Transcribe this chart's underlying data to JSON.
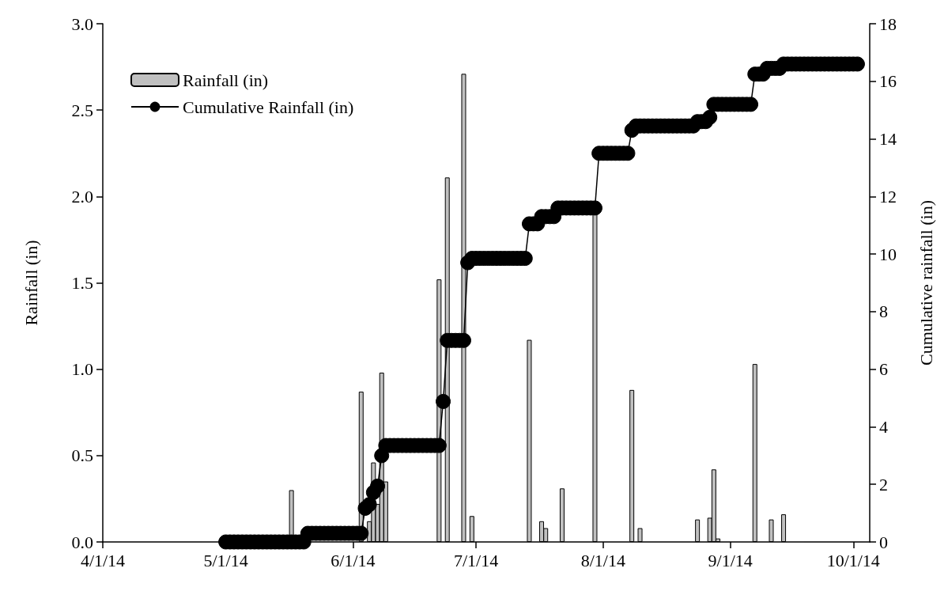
{
  "chart_data": {
    "type": "bar",
    "xlim": [
      "2014-04-01",
      "2014-10-05"
    ],
    "xticks": [
      {
        "value": "2014-04-01",
        "label": "4/1/14"
      },
      {
        "value": "2014-05-01",
        "label": "5/1/14"
      },
      {
        "value": "2014-06-01",
        "label": "6/1/14"
      },
      {
        "value": "2014-07-01",
        "label": "7/1/14"
      },
      {
        "value": "2014-08-01",
        "label": "8/1/14"
      },
      {
        "value": "2014-09-01",
        "label": "9/1/14"
      },
      {
        "value": "2014-10-01",
        "label": "10/1/14"
      }
    ],
    "ylabel": "Rainfall (in)",
    "y2label": "Cumulative rainfall (in)",
    "ylim": [
      0,
      3
    ],
    "yticks": [
      {
        "value": 0,
        "label": "0.0"
      },
      {
        "value": 0.5,
        "label": "0.5"
      },
      {
        "value": 1,
        "label": "1.0"
      },
      {
        "value": 1.5,
        "label": "1.5"
      },
      {
        "value": 2,
        "label": "2.0"
      },
      {
        "value": 2.5,
        "label": "2.5"
      },
      {
        "value": 3,
        "label": "3.0"
      }
    ],
    "y2lim": [
      0,
      18
    ],
    "y2ticks": [
      0,
      2,
      4,
      6,
      8,
      10,
      12,
      14,
      16,
      18
    ],
    "grid": false,
    "legend": "top left",
    "series": [
      {
        "name": "Rainfall (in)",
        "color": "#c0c0c0",
        "x": [
          "2014-05-17",
          "2014-06-03",
          "2014-06-05",
          "2014-06-06",
          "2014-06-07",
          "2014-06-08",
          "2014-06-09",
          "2014-06-22",
          "2014-06-24",
          "2014-06-28",
          "2014-06-30",
          "2014-07-14",
          "2014-07-17",
          "2014-07-18",
          "2014-07-22",
          "2014-07-30",
          "2014-08-08",
          "2014-08-10",
          "2014-08-24",
          "2014-08-27",
          "2014-08-28",
          "2014-08-29",
          "2014-09-07",
          "2014-09-11",
          "2014-09-14"
        ],
        "values": [
          0.3,
          0.87,
          0.12,
          0.46,
          0.22,
          0.98,
          0.35,
          1.52,
          2.11,
          2.71,
          0.15,
          1.17,
          0.12,
          0.08,
          0.31,
          1.9,
          0.88,
          0.08,
          0.13,
          0.14,
          0.42,
          0.02,
          1.03,
          0.13,
          0.16
        ]
      },
      {
        "name": "Cumulative Rainfall (in)",
        "type": "line",
        "axis": "y2",
        "color": "#000000",
        "marker": "circle",
        "line_style": "solid",
        "x": [
          "2014-05-01",
          "2014-05-02",
          "2014-05-03",
          "2014-05-04",
          "2014-05-05",
          "2014-05-06",
          "2014-05-07",
          "2014-05-08",
          "2014-05-09",
          "2014-05-10",
          "2014-05-11",
          "2014-05-12",
          "2014-05-13",
          "2014-05-14",
          "2014-05-15",
          "2014-05-16",
          "2014-05-17",
          "2014-05-18",
          "2014-05-19",
          "2014-05-20",
          "2014-05-21",
          "2014-05-22",
          "2014-05-23",
          "2014-05-24",
          "2014-05-25",
          "2014-05-26",
          "2014-05-27",
          "2014-05-28",
          "2014-05-29",
          "2014-05-30",
          "2014-05-31",
          "2014-06-01",
          "2014-06-02",
          "2014-06-03",
          "2014-06-04",
          "2014-06-05",
          "2014-06-06",
          "2014-06-07",
          "2014-06-08",
          "2014-06-09",
          "2014-06-10",
          "2014-06-11",
          "2014-06-12",
          "2014-06-13",
          "2014-06-14",
          "2014-06-15",
          "2014-06-16",
          "2014-06-17",
          "2014-06-18",
          "2014-06-19",
          "2014-06-20",
          "2014-06-21",
          "2014-06-22",
          "2014-06-23",
          "2014-06-24",
          "2014-06-25",
          "2014-06-26",
          "2014-06-27",
          "2014-06-28",
          "2014-06-29",
          "2014-06-30",
          "2014-07-01",
          "2014-07-02",
          "2014-07-03",
          "2014-07-04",
          "2014-07-05",
          "2014-07-06",
          "2014-07-07",
          "2014-07-08",
          "2014-07-09",
          "2014-07-10",
          "2014-07-11",
          "2014-07-12",
          "2014-07-13",
          "2014-07-14",
          "2014-07-15",
          "2014-07-16",
          "2014-07-17",
          "2014-07-18",
          "2014-07-19",
          "2014-07-20",
          "2014-07-21",
          "2014-07-22",
          "2014-07-23",
          "2014-07-24",
          "2014-07-25",
          "2014-07-26",
          "2014-07-27",
          "2014-07-28",
          "2014-07-29",
          "2014-07-30",
          "2014-07-31",
          "2014-08-01",
          "2014-08-02",
          "2014-08-03",
          "2014-08-04",
          "2014-08-05",
          "2014-08-06",
          "2014-08-07",
          "2014-08-08",
          "2014-08-09",
          "2014-08-10",
          "2014-08-11",
          "2014-08-12",
          "2014-08-13",
          "2014-08-14",
          "2014-08-15",
          "2014-08-16",
          "2014-08-17",
          "2014-08-18",
          "2014-08-19",
          "2014-08-20",
          "2014-08-21",
          "2014-08-22",
          "2014-08-23",
          "2014-08-24",
          "2014-08-25",
          "2014-08-26",
          "2014-08-27",
          "2014-08-28",
          "2014-08-29",
          "2014-08-30",
          "2014-08-31",
          "2014-09-01",
          "2014-09-02",
          "2014-09-03",
          "2014-09-04",
          "2014-09-05",
          "2014-09-06",
          "2014-09-07",
          "2014-09-08",
          "2014-09-09",
          "2014-09-10",
          "2014-09-11",
          "2014-09-12",
          "2014-09-13",
          "2014-09-14",
          "2014-09-15",
          "2014-09-16",
          "2014-09-17",
          "2014-09-18",
          "2014-09-19",
          "2014-09-20",
          "2014-09-21",
          "2014-09-22",
          "2014-09-23",
          "2014-09-24",
          "2014-09-25",
          "2014-09-26",
          "2014-09-27",
          "2014-09-28",
          "2014-09-29",
          "2014-09-30",
          "2014-10-01",
          "2014-10-02"
        ],
        "values": [
          0,
          0,
          0,
          0,
          0,
          0,
          0,
          0,
          0,
          0,
          0,
          0,
          0,
          0,
          0,
          0,
          0,
          0,
          0,
          0,
          0.3,
          0.3,
          0.3,
          0.3,
          0.3,
          0.3,
          0.3,
          0.3,
          0.3,
          0.3,
          0.3,
          0.3,
          0.3,
          0.3,
          1.17,
          1.3,
          1.72,
          1.94,
          3.0,
          3.35,
          3.35,
          3.35,
          3.35,
          3.35,
          3.35,
          3.35,
          3.35,
          3.35,
          3.35,
          3.35,
          3.35,
          3.35,
          3.35,
          4.88,
          7.0,
          7.0,
          7.0,
          7.0,
          7.0,
          9.7,
          9.85,
          9.85,
          9.85,
          9.85,
          9.85,
          9.85,
          9.85,
          9.85,
          9.85,
          9.85,
          9.85,
          9.85,
          9.85,
          9.85,
          11.05,
          11.05,
          11.05,
          11.3,
          11.3,
          11.3,
          11.3,
          11.6,
          11.6,
          11.6,
          11.6,
          11.6,
          11.6,
          11.6,
          11.6,
          11.6,
          11.6,
          13.5,
          13.5,
          13.5,
          13.5,
          13.5,
          13.5,
          13.5,
          13.5,
          14.3,
          14.45,
          14.45,
          14.45,
          14.45,
          14.45,
          14.45,
          14.45,
          14.45,
          14.45,
          14.45,
          14.45,
          14.45,
          14.45,
          14.45,
          14.45,
          14.6,
          14.6,
          14.6,
          14.75,
          15.2,
          15.2,
          15.2,
          15.2,
          15.2,
          15.2,
          15.2,
          15.2,
          15.2,
          15.2,
          16.25,
          16.25,
          16.25,
          16.45,
          16.45,
          16.45,
          16.45,
          16.6,
          16.6,
          16.6,
          16.6,
          16.6,
          16.6,
          16.6,
          16.6,
          16.6,
          16.6,
          16.6,
          16.6,
          16.6,
          16.6,
          16.6,
          16.6,
          16.6,
          16.6,
          16.6
        ]
      }
    ]
  }
}
